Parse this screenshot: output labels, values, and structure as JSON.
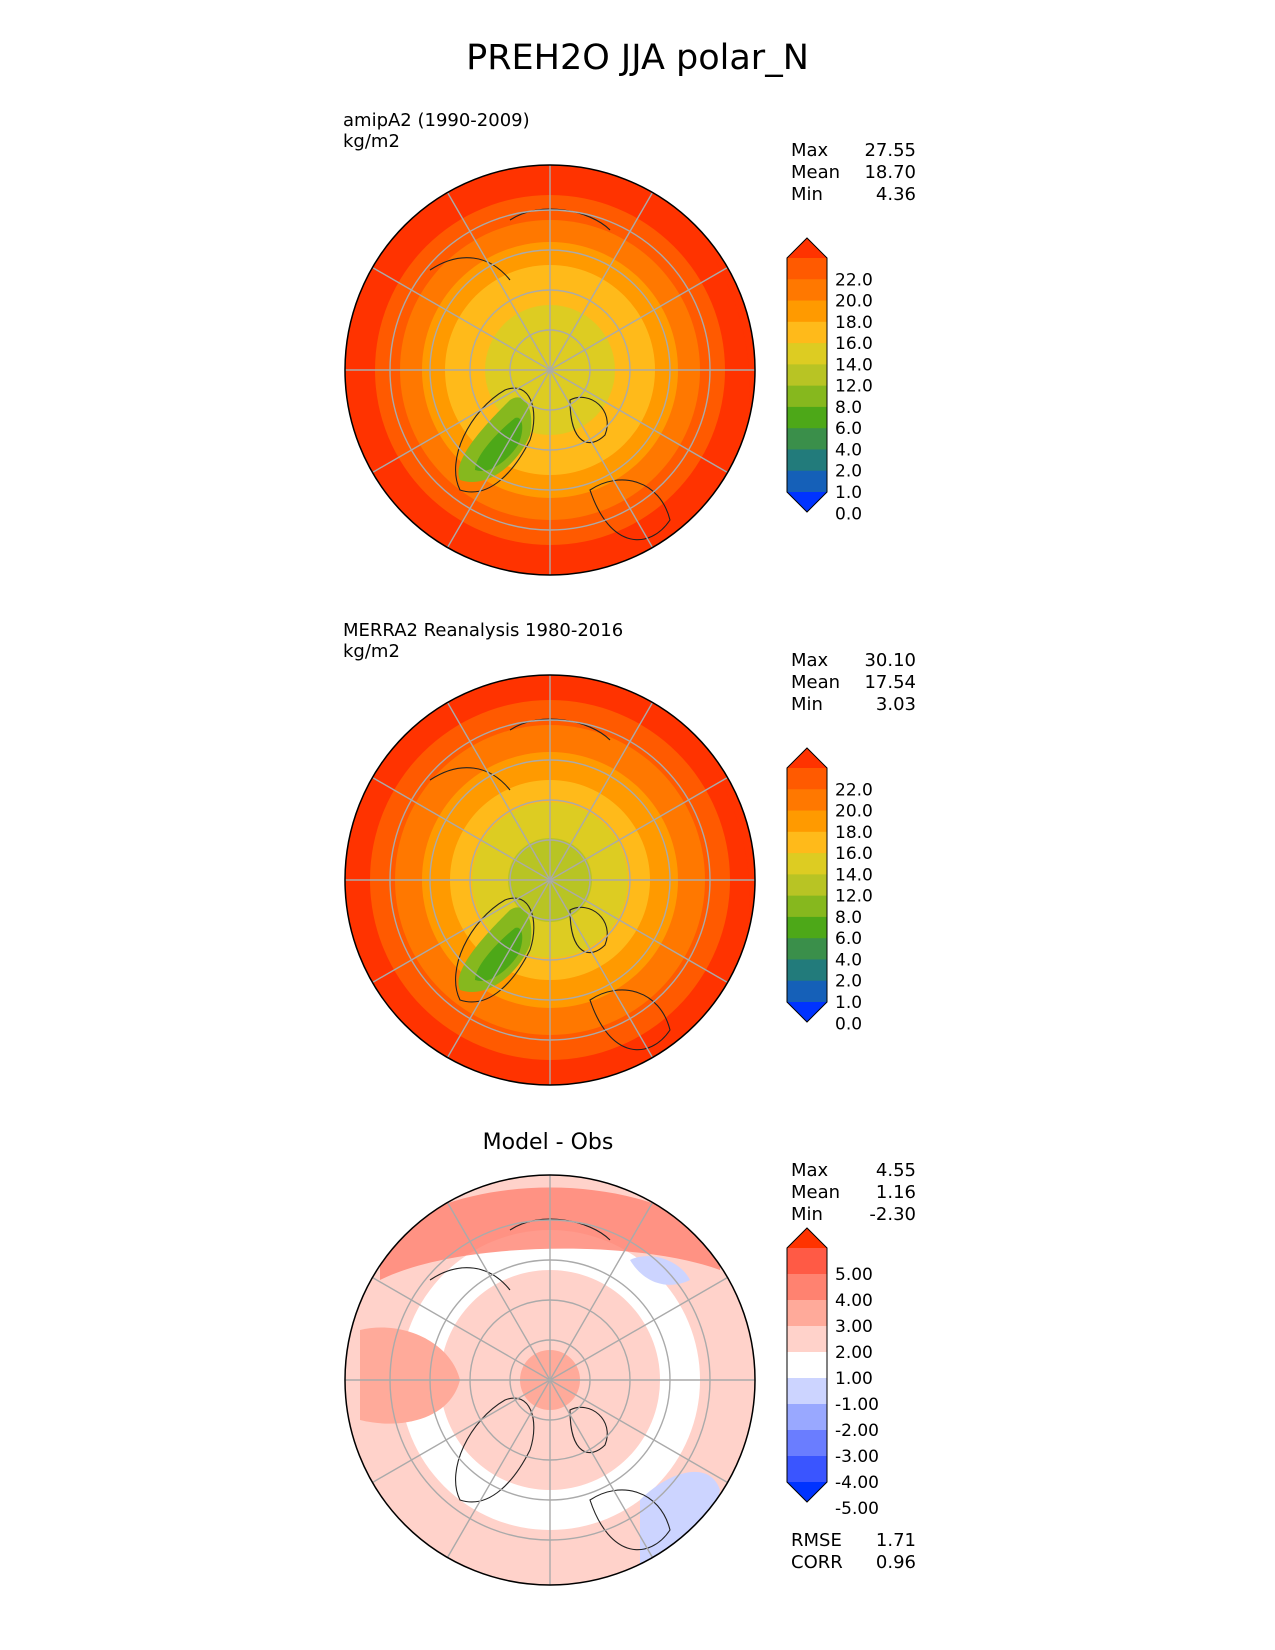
{
  "title": "PREH2O JJA polar_N",
  "panels": [
    {
      "subtitle": "amipA2 (1990-2009)",
      "units": "kg/m2",
      "stats": {
        "max_label": "Max",
        "max": "27.55",
        "mean_label": "Mean",
        "mean": "18.70",
        "min_label": "Min",
        "min": "4.36"
      },
      "colorbar": {
        "ticks": [
          "22.0",
          "20.0",
          "18.0",
          "16.0",
          "14.0",
          "12.0",
          "8.0",
          "6.0",
          "4.0",
          "2.0",
          "1.0",
          "0.0"
        ],
        "colors": [
          "#ff3300",
          "#ff5a00",
          "#ff7800",
          "#ff9a00",
          "#ffba1a",
          "#ddcc22",
          "#b8c424",
          "#86b81e",
          "#4da818",
          "#3a8f4a",
          "#227b7b",
          "#1560b8",
          "#0033ff"
        ]
      },
      "map_style": "model"
    },
    {
      "subtitle": "MERRA2 Reanalysis 1980-2016",
      "units": "kg/m2",
      "stats": {
        "max_label": "Max",
        "max": "30.10",
        "mean_label": "Mean",
        "mean": "17.54",
        "min_label": "Min",
        "min": "3.03"
      },
      "colorbar": {
        "ticks": [
          "22.0",
          "20.0",
          "18.0",
          "16.0",
          "14.0",
          "12.0",
          "8.0",
          "6.0",
          "4.0",
          "2.0",
          "1.0",
          "0.0"
        ],
        "colors": [
          "#ff3300",
          "#ff5a00",
          "#ff7800",
          "#ff9a00",
          "#ffba1a",
          "#ddcc22",
          "#b8c424",
          "#86b81e",
          "#4da818",
          "#3a8f4a",
          "#227b7b",
          "#1560b8",
          "#0033ff"
        ]
      },
      "map_style": "obs"
    },
    {
      "subtitle": "Model - Obs",
      "units": "",
      "stats": {
        "max_label": "Max",
        "max": "4.55",
        "mean_label": "Mean",
        "mean": "1.16",
        "min_label": "Min",
        "min": "-2.30"
      },
      "colorbar": {
        "ticks": [
          "5.00",
          "4.00",
          "3.00",
          "2.00",
          "1.00",
          "-1.00",
          "-2.00",
          "-3.00",
          "-4.00",
          "-5.00"
        ],
        "colors": [
          "#ff3300",
          "#ff5a45",
          "#ff8270",
          "#ffaa9a",
          "#ffd2ca",
          "#ffffff",
          "#ccd4ff",
          "#99a8ff",
          "#6a7dff",
          "#3a55ff",
          "#0033ff"
        ]
      },
      "map_style": "diff"
    }
  ],
  "metrics": {
    "rmse_label": "RMSE",
    "rmse": "1.71",
    "corr_label": "CORR",
    "corr": "0.96"
  }
}
